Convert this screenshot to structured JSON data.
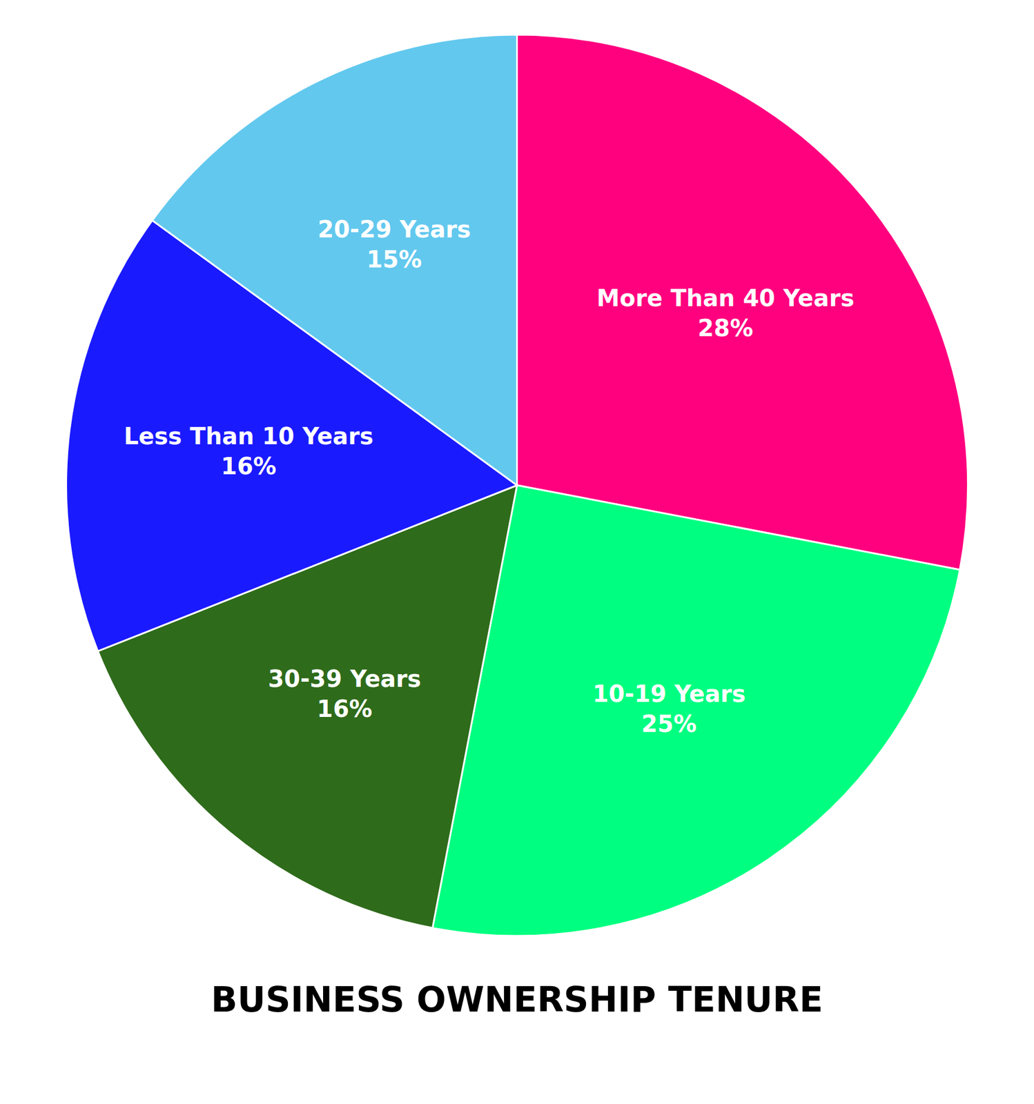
{
  "chart_data": {
    "type": "pie",
    "title": "BUSINESS OWNERSHIP TENURE",
    "categories": [
      "More Than 40 Years",
      "10-19 Years",
      "30-39 Years",
      "Less Than 10 Years",
      "20-29 Years"
    ],
    "values": [
      28,
      25,
      16,
      16,
      15
    ],
    "value_labels": [
      "28%",
      "25%",
      "16%",
      "16%",
      "15%"
    ],
    "colors": [
      "#FF007F",
      "#00FF80",
      "#2E6B1A",
      "#1A1AFF",
      "#62C8EE"
    ],
    "data_labels": true
  }
}
